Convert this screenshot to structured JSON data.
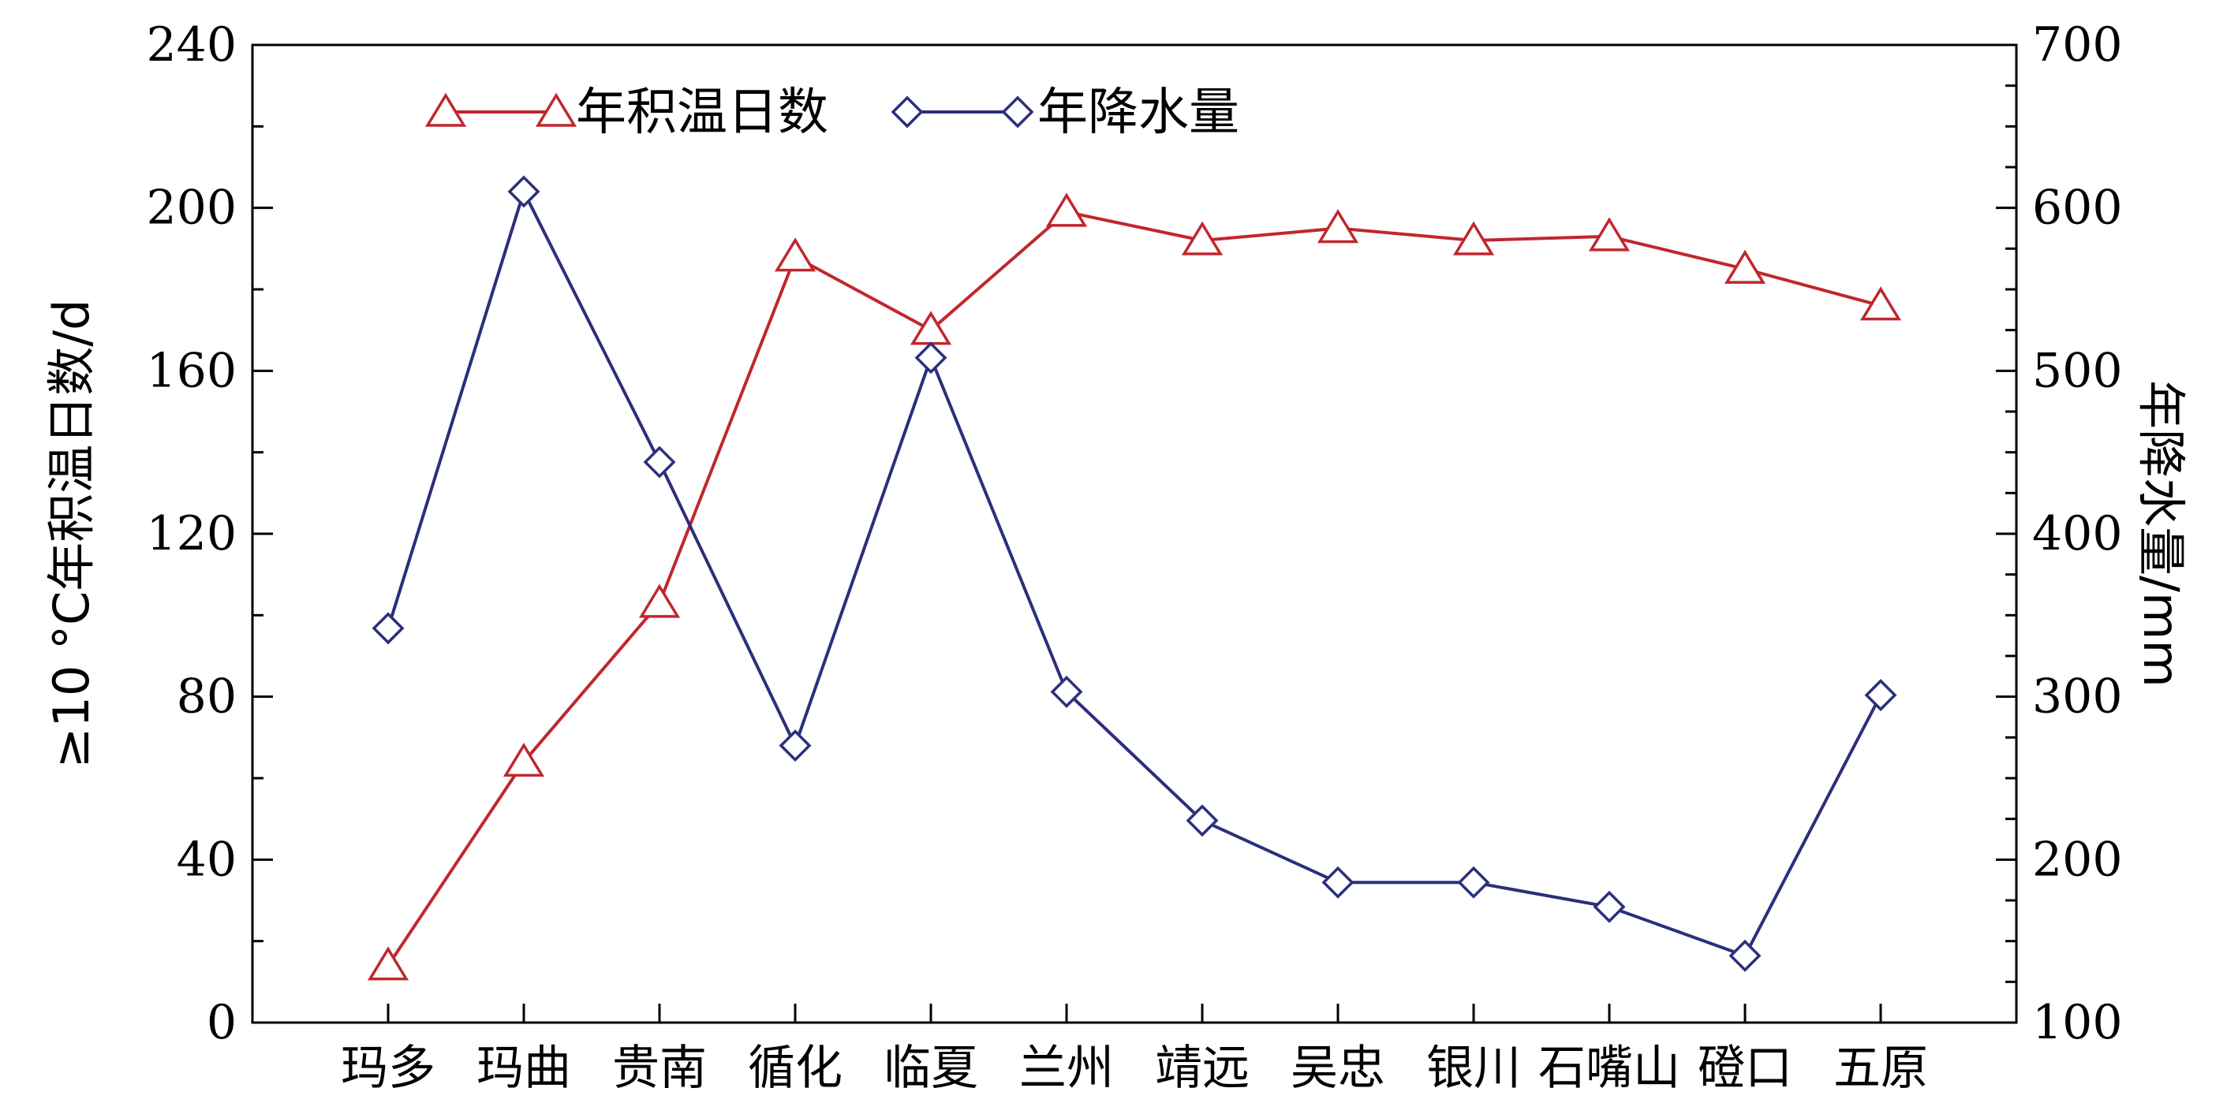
{
  "chart_data": {
    "type": "line",
    "categories": [
      "玛多",
      "玛曲",
      "贵南",
      "循化",
      "临夏",
      "兰州",
      "靖远",
      "吴忠",
      "银川",
      "石嘴山",
      "磴口",
      "五原"
    ],
    "series": [
      {
        "name": "年积温日数",
        "axis": "left",
        "marker": "triangle",
        "color": "#c0272d",
        "values": [
          14,
          64,
          103,
          188,
          170,
          199,
          192,
          195,
          192,
          193,
          185,
          176
        ]
      },
      {
        "name": "年降水量",
        "axis": "right",
        "marker": "diamond",
        "color": "#2b2f7c",
        "values": [
          342,
          610,
          444,
          270,
          508,
          303,
          224,
          186,
          186,
          171,
          141,
          301
        ]
      }
    ],
    "ylabel_left": "≥10 °C年积温日数/d",
    "ylabel_right": "年降水量/mm",
    "ylim_left": [
      0,
      240
    ],
    "ylim_right": [
      100,
      700
    ],
    "yticks_left": [
      "0",
      "40",
      "80",
      "120",
      "160",
      "200",
      "240"
    ],
    "yticks_right": [
      "100",
      "200",
      "300",
      "400",
      "500",
      "600",
      "700"
    ],
    "grid": false,
    "legend_placement": "top-left"
  }
}
